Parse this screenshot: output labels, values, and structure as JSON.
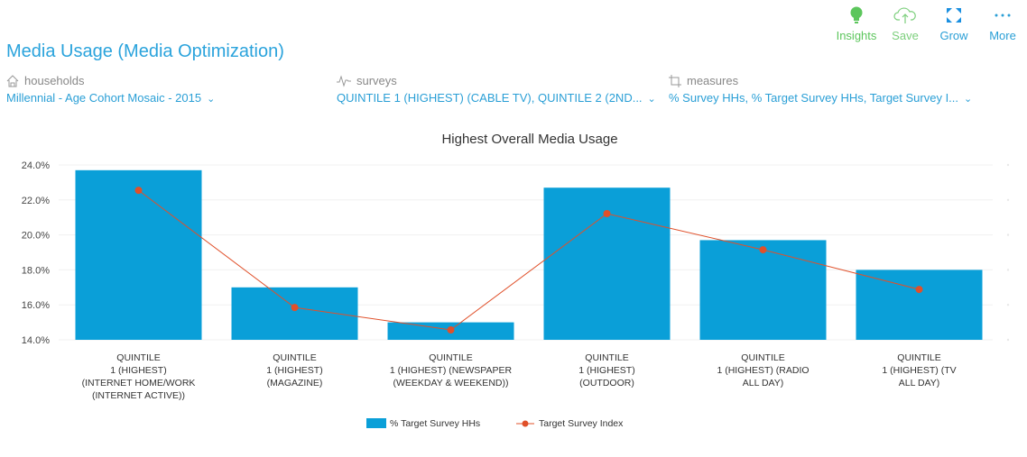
{
  "header": {
    "title": "Media Usage (Media Optimization)"
  },
  "actions": [
    {
      "label": "Insights",
      "icon": "lightbulb-icon",
      "color": "#5cc65c"
    },
    {
      "label": "Save",
      "icon": "cloud-upload-icon",
      "color": "#7ccf7c"
    },
    {
      "label": "Grow",
      "icon": "expand-icon",
      "color": "#2a9fd6"
    },
    {
      "label": "More",
      "icon": "more-icon",
      "color": "#2a9fd6"
    }
  ],
  "filters": {
    "households": {
      "label": "households",
      "value": "Millennial - Age Cohort Mosaic - 2015"
    },
    "surveys": {
      "label": "surveys",
      "value": "QUINTILE 1 (HIGHEST) (CABLE TV), QUINTILE 2 (2ND..."
    },
    "measures": {
      "label": "measures",
      "value": "% Survey HHs, % Target Survey HHs, Target Survey I..."
    }
  },
  "chart_data": {
    "type": "bar",
    "title": "Highest Overall Media Usage",
    "categories": [
      [
        "QUINTILE",
        "1 (HIGHEST)",
        "(INTERNET HOME/WORK",
        "(INTERNET ACTIVE))"
      ],
      [
        "QUINTILE",
        "1 (HIGHEST)",
        "(MAGAZINE)"
      ],
      [
        "QUINTILE",
        "1 (HIGHEST) (NEWSPAPER",
        "(WEEKDAY & WEEKEND))"
      ],
      [
        "QUINTILE",
        "1 (HIGHEST)",
        "(OUTDOOR)"
      ],
      [
        "QUINTILE",
        "1 (HIGHEST) (RADIO",
        "ALL DAY)"
      ],
      [
        "QUINTILE",
        "1 (HIGHEST) (TV",
        "ALL DAY)"
      ]
    ],
    "yticks": [
      "14.0%",
      "16.0%",
      "18.0%",
      "20.0%",
      "22.0%",
      "24.0%"
    ],
    "ylim": [
      14,
      24
    ],
    "y2lim": [
      80,
      140
    ],
    "series": [
      {
        "name": "% Target Survey HHs",
        "type": "bar",
        "color": "#0a9fd8",
        "values": [
          23.7,
          17.0,
          15.0,
          22.7,
          19.7,
          18.0
        ]
      },
      {
        "name": "Target Survey Index",
        "type": "line",
        "color": "#e0502a",
        "values": [
          131.3,
          91.1,
          83.4,
          123.3,
          110.9,
          97.3
        ]
      }
    ],
    "legend": "bottom"
  }
}
